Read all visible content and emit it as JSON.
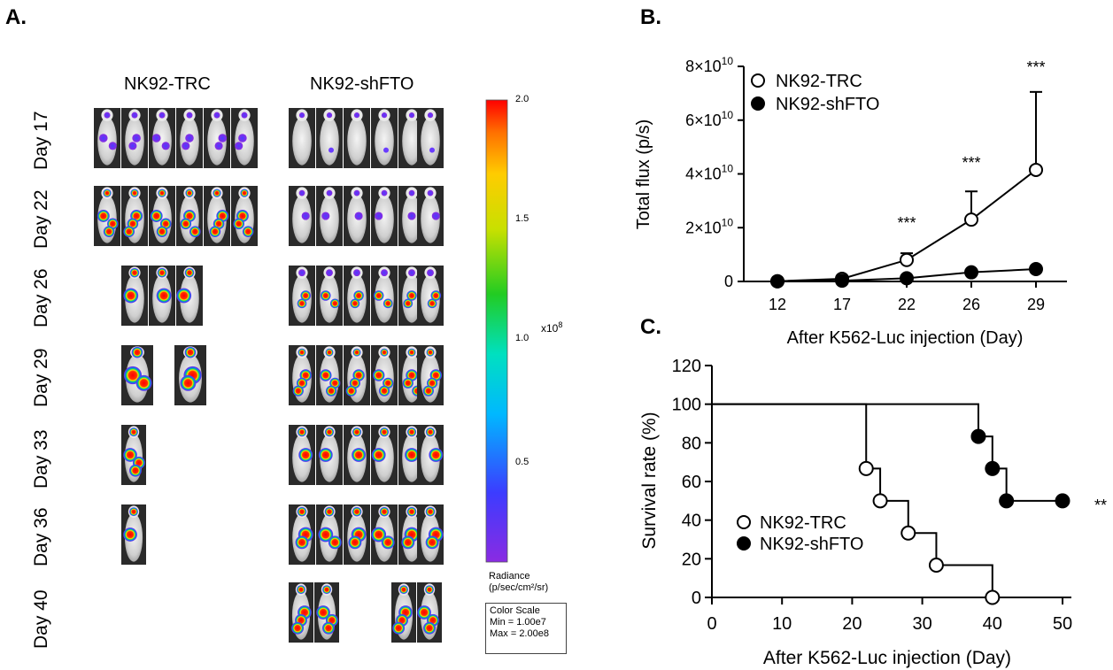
{
  "panel_a": {
    "letter": "A.",
    "groups": [
      "NK92-TRC",
      "NK92-shFTO"
    ],
    "days": [
      "Day 17",
      "Day 22",
      "Day 26",
      "Day 29",
      "Day 33",
      "Day 36",
      "Day 40"
    ],
    "mice_counts": {
      "NK92-TRC": [
        6,
        6,
        3,
        2,
        1,
        1,
        0
      ],
      "NK92-shFTO": [
        6,
        6,
        6,
        6,
        6,
        6,
        4
      ]
    },
    "colorbar": {
      "ticks": [
        "2.0",
        "1.5",
        "1.0",
        "0.5"
      ],
      "multiplier": "x10",
      "multiplier_exp": "8",
      "radiance_label": "Radiance",
      "radiance_units": "(p/sec/cm²/sr)",
      "scale_title": "Color Scale",
      "scale_min": "Min = 1.00e7",
      "scale_max": "Max = 2.00e8"
    }
  },
  "panel_b": {
    "letter": "B.",
    "y_tick_labels": [
      {
        "value": 0,
        "mant": "0",
        "exp": ""
      },
      {
        "value": 20000000000.0,
        "mant": "2×10",
        "exp": "10"
      },
      {
        "value": 40000000000.0,
        "mant": "4×10",
        "exp": "10"
      },
      {
        "value": 60000000000.0,
        "mant": "6×10",
        "exp": "10"
      },
      {
        "value": 80000000000.0,
        "mant": "8×10",
        "exp": "10"
      }
    ],
    "significance": [
      "***",
      "***",
      "***"
    ]
  },
  "panel_c": {
    "letter": "C.",
    "significance": "**"
  },
  "chart_data": [
    {
      "type": "line",
      "panel": "B",
      "xlabel": "After K562-Luc injection (Day)",
      "ylabel": "Total flux (p/s)",
      "categories": [
        "12",
        "17",
        "22",
        "26",
        "29"
      ],
      "ylim": [
        0,
        80000000000
      ],
      "legend_position": "top-left",
      "series": [
        {
          "name": "NK92-TRC",
          "marker": "open-circle",
          "values": [
            100000000,
            1000000000,
            8000000000,
            23000000000,
            41500000000
          ],
          "error_upper": [
            null,
            null,
            10500000000,
            33500000000,
            70500000000
          ]
        },
        {
          "name": "NK92-shFTO",
          "marker": "filled-circle",
          "values": [
            50000000,
            300000000,
            1200000000,
            3400000000,
            4600000000
          ]
        }
      ],
      "annotations": [
        {
          "x": "22",
          "text": "***"
        },
        {
          "x": "26",
          "text": "***"
        },
        {
          "x": "29",
          "text": "***"
        }
      ]
    },
    {
      "type": "line",
      "panel": "C",
      "subtype": "kaplan-meier",
      "xlabel": "After  K562-Luc injection (Day)",
      "ylabel": "Survival rate (%)",
      "xlim": [
        0,
        50
      ],
      "ylim": [
        0,
        120
      ],
      "x_ticks": [
        0,
        10,
        20,
        30,
        40,
        50
      ],
      "y_ticks": [
        0,
        20,
        40,
        60,
        80,
        100,
        120
      ],
      "legend_position": "lower-left",
      "series": [
        {
          "name": "NK92-TRC",
          "marker": "open-circle",
          "steps": [
            [
              0,
              100
            ],
            [
              22,
              66.7
            ],
            [
              24,
              50
            ],
            [
              28,
              33.3
            ],
            [
              32,
              16.7
            ],
            [
              40,
              0
            ]
          ]
        },
        {
          "name": "NK92-shFTO",
          "marker": "filled-circle",
          "steps": [
            [
              0,
              100
            ],
            [
              38,
              83.3
            ],
            [
              40,
              66.7
            ],
            [
              42,
              50
            ],
            [
              50,
              50
            ]
          ]
        }
      ],
      "annotations": [
        {
          "text": "**"
        }
      ]
    }
  ]
}
